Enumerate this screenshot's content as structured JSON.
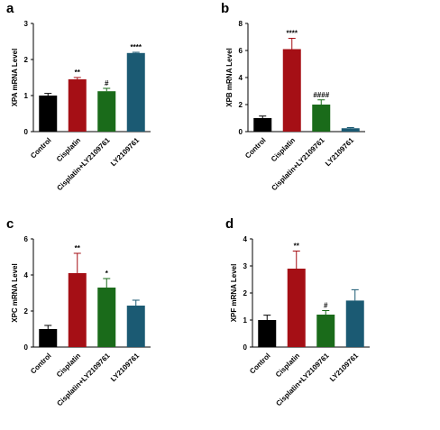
{
  "chart_data": [
    {
      "type": "bar",
      "panel": "a",
      "ylabel": "XPA mRNA Level",
      "categories": [
        "Control",
        "Cisplatin",
        "Cisplatin+LY2109761",
        "LY2109761"
      ],
      "values": [
        1.0,
        1.45,
        1.12,
        2.18
      ],
      "errors": [
        0.06,
        0.05,
        0.08,
        0.02
      ],
      "colors": [
        "#000000",
        "#a50f15",
        "#1a6b1a",
        "#1b5a73"
      ],
      "annotations": [
        null,
        "**",
        "#",
        "****"
      ],
      "ylim": [
        0,
        3
      ],
      "yticks": [
        0,
        1,
        2,
        3
      ]
    },
    {
      "type": "bar",
      "panel": "b",
      "ylabel": "XPB mRNA Level",
      "categories": [
        "Control",
        "Cisplatin",
        "Cisplatin+LY2109761",
        "LY2109761"
      ],
      "values": [
        1.0,
        6.1,
        2.0,
        0.25
      ],
      "errors": [
        0.15,
        0.8,
        0.35,
        0.05
      ],
      "colors": [
        "#000000",
        "#a50f15",
        "#1a6b1a",
        "#1b5a73"
      ],
      "annotations": [
        null,
        "****",
        "####",
        null
      ],
      "ylim": [
        0,
        8
      ],
      "yticks": [
        0,
        2,
        4,
        6,
        8
      ]
    },
    {
      "type": "bar",
      "panel": "c",
      "ylabel": "XPC mRNA Level",
      "categories": [
        "Control",
        "Cisplatin",
        "Cisplatin+LY2109761",
        "LY2109761"
      ],
      "values": [
        1.0,
        4.1,
        3.3,
        2.3
      ],
      "errors": [
        0.2,
        1.1,
        0.5,
        0.3
      ],
      "colors": [
        "#000000",
        "#a50f15",
        "#1a6b1a",
        "#1b5a73"
      ],
      "annotations": [
        null,
        "**",
        "*",
        null
      ],
      "ylim": [
        0,
        6
      ],
      "yticks": [
        0,
        2,
        4,
        6
      ]
    },
    {
      "type": "bar",
      "panel": "d",
      "ylabel": "XPF mRNA Level",
      "categories": [
        "Control",
        "Cisplatin",
        "Cisplatin+LY2109761",
        "LY2109761"
      ],
      "values": [
        1.0,
        2.9,
        1.2,
        1.72
      ],
      "errors": [
        0.18,
        0.65,
        0.15,
        0.4
      ],
      "colors": [
        "#000000",
        "#a50f15",
        "#1a6b1a",
        "#1b5a73"
      ],
      "annotations": [
        null,
        "**",
        "#",
        null
      ],
      "ylim": [
        0,
        4
      ],
      "yticks": [
        0,
        1,
        2,
        3,
        4
      ]
    }
  ]
}
